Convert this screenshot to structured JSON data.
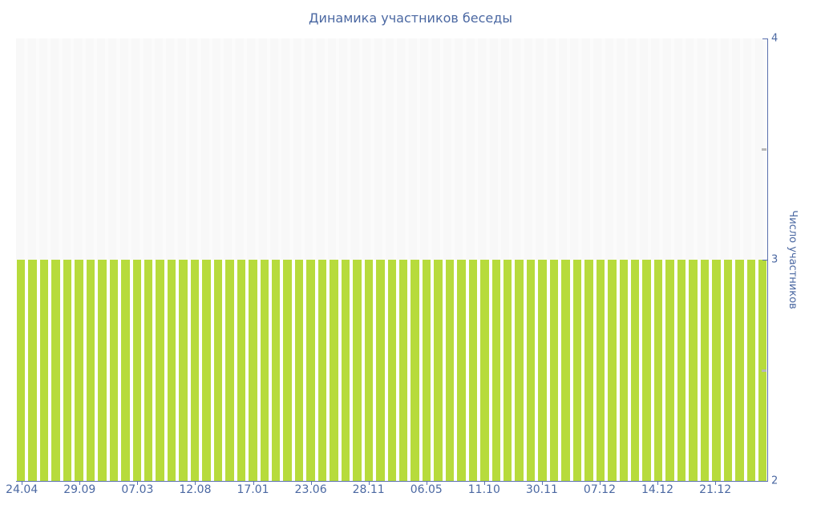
{
  "colors": {
    "bar": "#b7db3c",
    "axis": "#5b71ae",
    "text": "#4b68a2",
    "plot_bg": "#f8f8f8",
    "minor_tick": "#b8b8b8",
    "page_bg": "#ffffff"
  },
  "chart_data": {
    "type": "bar",
    "title": "Динамика участников беседы",
    "xlabel": "",
    "ylabel": "Число участников",
    "ylim": [
      2,
      4
    ],
    "y_ticks": [
      2,
      3,
      4
    ],
    "y_minor_ticks": [
      2.5,
      3.5
    ],
    "x_tick_labels": [
      "24.04",
      "29.09",
      "07.03",
      "12.08",
      "17.01",
      "23.06",
      "28.11",
      "06.05",
      "11.10",
      "30.11",
      "07.12",
      "14.12",
      "21.12"
    ],
    "x_label_every": 5,
    "bar_count": 65,
    "values": [
      3,
      3,
      3,
      3,
      3,
      3,
      3,
      3,
      3,
      3,
      3,
      3,
      3,
      3,
      3,
      3,
      3,
      3,
      3,
      3,
      3,
      3,
      3,
      3,
      3,
      3,
      3,
      3,
      3,
      3,
      3,
      3,
      3,
      3,
      3,
      3,
      3,
      3,
      3,
      3,
      3,
      3,
      3,
      3,
      3,
      3,
      3,
      3,
      3,
      3,
      3,
      3,
      3,
      3,
      3,
      3,
      3,
      3,
      3,
      3,
      3,
      3,
      3,
      3,
      3
    ],
    "legend": "none",
    "grid": "off"
  }
}
